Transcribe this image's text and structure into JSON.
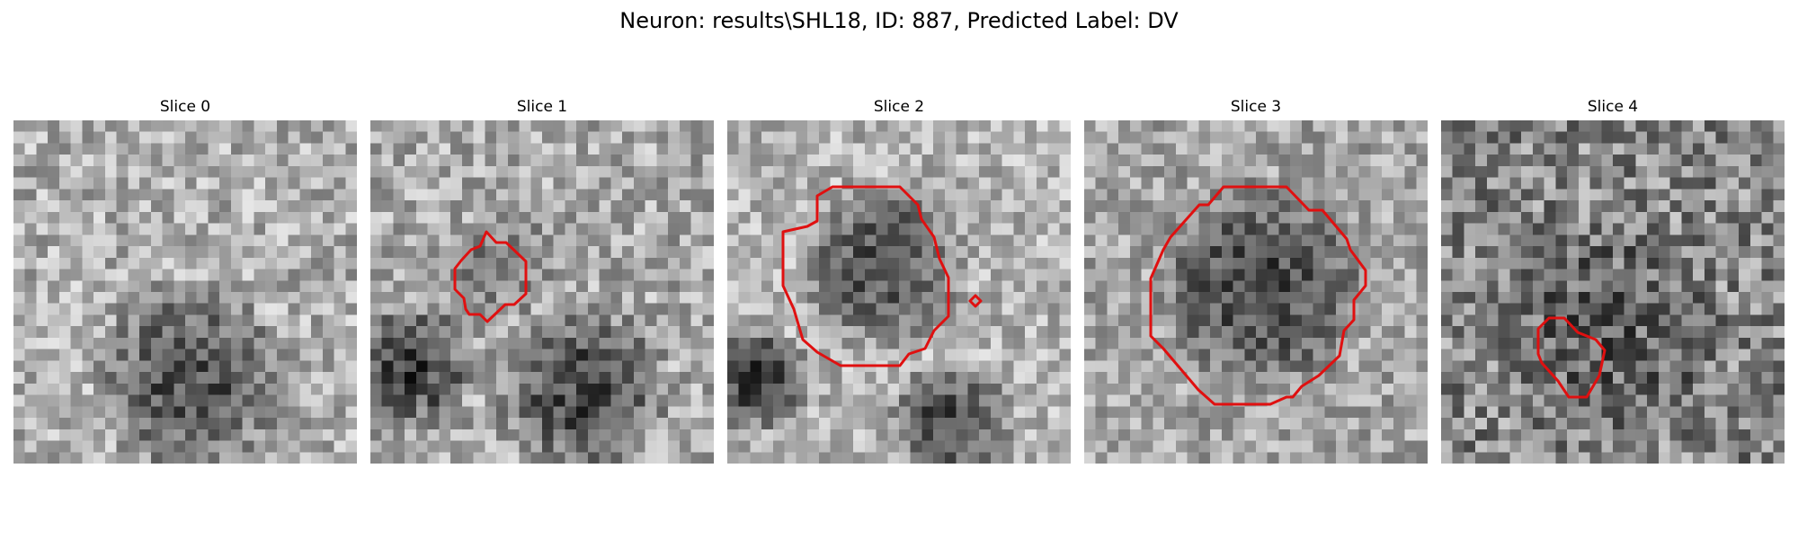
{
  "figure": {
    "title": "Neuron: results\\SHL18, ID: 887, Predicted Label: DV",
    "contour_color": "#e01010"
  },
  "panels": [
    {
      "title": "Slice 0"
    },
    {
      "title": "Slice 1"
    },
    {
      "title": "Slice 2"
    },
    {
      "title": "Slice 3"
    },
    {
      "title": "Slice 4"
    }
  ]
}
